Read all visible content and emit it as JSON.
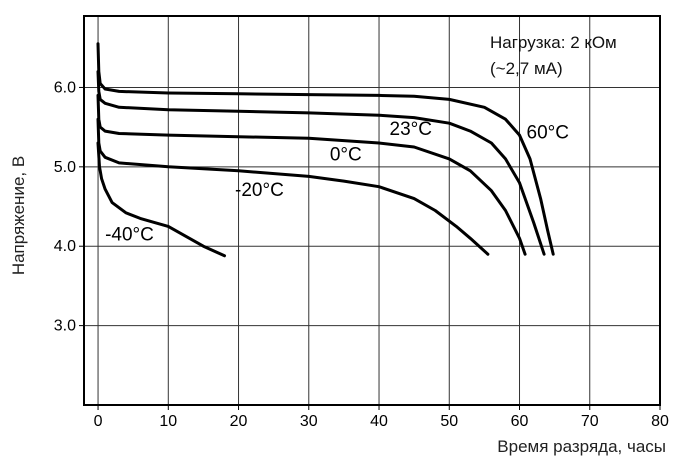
{
  "chart_data": {
    "type": "line",
    "title": "",
    "xlabel": "Время разряда, часы",
    "ylabel": "Напряжение, В",
    "xlim": [
      -2,
      80
    ],
    "ylim": [
      2.0,
      6.9
    ],
    "xticks": [
      0,
      10,
      20,
      30,
      40,
      50,
      60,
      70,
      80
    ],
    "xtick_labels": [
      "0",
      "10",
      "20",
      "30",
      "40",
      "50",
      "60",
      "70",
      "80"
    ],
    "yticks": [
      3.0,
      4.0,
      5.0,
      6.0
    ],
    "ytick_labels": [
      "3.0",
      "4.0",
      "5.0",
      "6.0"
    ],
    "grid": true,
    "annotation": [
      "Нагрузка: 2 кОм",
      "(~2,7 мА)"
    ],
    "series": [
      {
        "name": "60°C",
        "x": [
          0,
          0.1,
          0.3,
          1,
          3,
          10,
          20,
          30,
          40,
          45,
          50,
          55,
          58,
          60,
          61.5,
          63,
          64,
          64.8
        ],
        "y": [
          6.55,
          6.2,
          6.05,
          5.98,
          5.95,
          5.93,
          5.92,
          5.91,
          5.9,
          5.89,
          5.85,
          5.75,
          5.6,
          5.4,
          5.1,
          4.6,
          4.2,
          3.9
        ]
      },
      {
        "name": "23°C",
        "x": [
          0,
          0.1,
          0.3,
          1,
          3,
          10,
          20,
          30,
          40,
          45,
          50,
          53,
          56,
          58,
          60,
          62,
          63.5
        ],
        "y": [
          6.2,
          5.95,
          5.85,
          5.8,
          5.75,
          5.72,
          5.7,
          5.68,
          5.65,
          5.62,
          5.55,
          5.45,
          5.3,
          5.1,
          4.8,
          4.3,
          3.9
        ]
      },
      {
        "name": "0°C",
        "x": [
          0,
          0.1,
          0.3,
          1,
          3,
          10,
          20,
          30,
          35,
          40,
          45,
          50,
          53,
          56,
          58,
          60,
          60.8
        ],
        "y": [
          5.9,
          5.6,
          5.5,
          5.45,
          5.42,
          5.4,
          5.38,
          5.36,
          5.33,
          5.3,
          5.25,
          5.1,
          4.95,
          4.7,
          4.45,
          4.1,
          3.9
        ]
      },
      {
        "name": "-20°C",
        "x": [
          0,
          0.1,
          0.3,
          1,
          3,
          10,
          20,
          30,
          35,
          40,
          45,
          48,
          51,
          53,
          55.5
        ],
        "y": [
          5.6,
          5.3,
          5.2,
          5.12,
          5.05,
          5.0,
          4.95,
          4.88,
          4.82,
          4.75,
          4.6,
          4.45,
          4.25,
          4.1,
          3.9
        ]
      },
      {
        "name": "-40°C",
        "x": [
          0,
          0.2,
          0.5,
          1,
          2,
          4,
          6,
          8,
          10,
          13,
          15,
          18
        ],
        "y": [
          5.3,
          5.0,
          4.85,
          4.72,
          4.55,
          4.42,
          4.35,
          4.3,
          4.25,
          4.1,
          4.0,
          3.88
        ]
      }
    ],
    "curve_labels": [
      {
        "text": "60°C",
        "x": 61,
        "y": 5.36
      },
      {
        "text": "23°C",
        "x": 41.5,
        "y": 5.4
      },
      {
        "text": "0°C",
        "x": 33,
        "y": 5.08
      },
      {
        "text": "-20°C",
        "x": 19.5,
        "y": 4.63
      },
      {
        "text": "-40°C",
        "x": 1,
        "y": 4.07
      }
    ]
  }
}
